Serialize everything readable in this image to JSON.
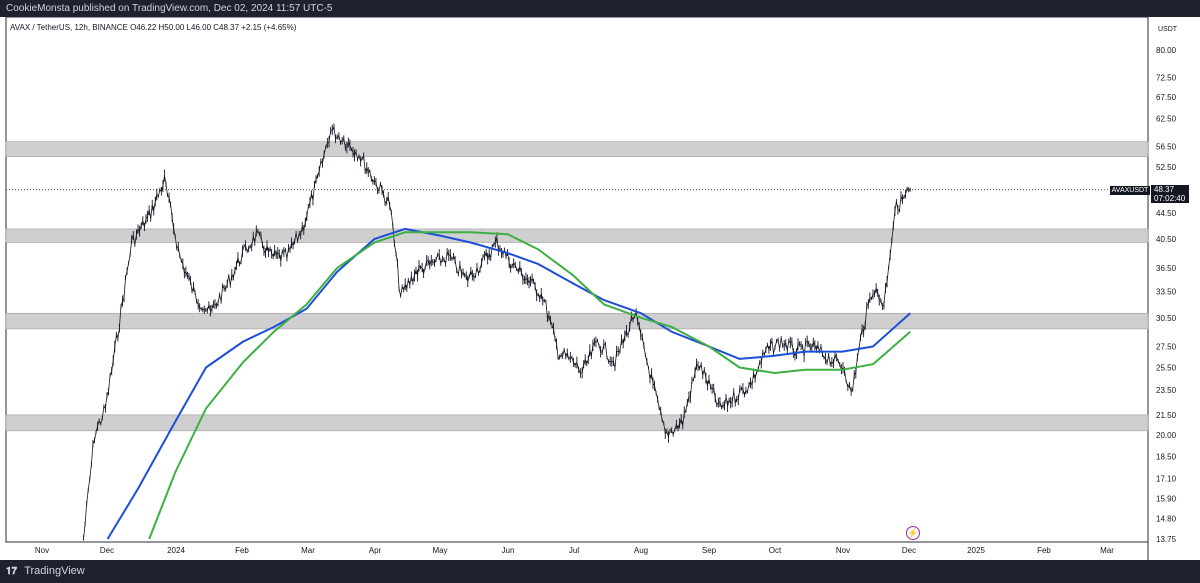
{
  "header": {
    "publisher_text": "CookieMonsta published on TradingView.com, Dec 02, 2024 11:57 UTC-5"
  },
  "footer": {
    "brand": "TradingView",
    "logo": "TV-logo-icon"
  },
  "chart_info": {
    "symbol_line": "AVAX / TetherUS, 12h, BINANCE",
    "ohlc": "O46.22 H50.00 L46.00 C48.37 +2.15 (+4.65%)",
    "unit": "USDT",
    "last_price_label": "48.37",
    "symbol_tag": "AVAXUSDT",
    "countdown": "07:02:40",
    "event_icon": "lightning-icon"
  },
  "colors": {
    "ma_fast": "#1e4ed8",
    "ma_slow": "#3cb043",
    "zones": "#cfcfcf",
    "candles": "#131722"
  },
  "chart_data": {
    "type": "line",
    "title": "",
    "xlabel": "",
    "ylabel": "",
    "y_scale": "log",
    "ylim": [
      13.75,
      90
    ],
    "grid": false,
    "x_ticks": [
      "Nov",
      "Dec",
      "2024",
      "Feb",
      "Mar",
      "Apr",
      "May",
      "Jun",
      "Jul",
      "Aug",
      "Sep",
      "Oct",
      "Nov",
      "Dec",
      "2025",
      "Feb",
      "Mar"
    ],
    "y_ticks": [
      80.0,
      72.5,
      67.5,
      62.5,
      56.5,
      52.5,
      48.5,
      44.5,
      40.5,
      36.5,
      33.5,
      30.5,
      27.5,
      25.5,
      23.5,
      21.5,
      20.0,
      18.5,
      17.1,
      15.9,
      14.8,
      13.75
    ],
    "y_tick_labels": [
      "80.00",
      "72.50",
      "67.50",
      "62.50",
      "56.50",
      "52.50",
      "48.50",
      "44.50",
      "40.50",
      "36.50",
      "33.50",
      "30.50",
      "27.50",
      "25.50",
      "23.50",
      "21.50",
      "20.00",
      "18.50",
      "17.10",
      "15.90",
      "14.80",
      "13.75"
    ],
    "price_path": {
      "x": [
        "2023-11-20",
        "2023-11-25",
        "2023-11-30",
        "2023-12-05",
        "2023-12-12",
        "2023-12-20",
        "2023-12-27",
        "2024-01-03",
        "2024-01-10",
        "2024-01-17",
        "2024-01-24",
        "2024-01-31",
        "2024-02-07",
        "2024-02-14",
        "2024-02-21",
        "2024-02-28",
        "2024-03-06",
        "2024-03-12",
        "2024-03-18",
        "2024-03-25",
        "2024-04-01",
        "2024-04-08",
        "2024-04-13",
        "2024-04-20",
        "2024-04-27",
        "2024-05-05",
        "2024-05-13",
        "2024-05-20",
        "2024-05-27",
        "2024-06-03",
        "2024-06-10",
        "2024-06-17",
        "2024-06-24",
        "2024-07-01",
        "2024-07-05",
        "2024-07-12",
        "2024-07-20",
        "2024-07-29",
        "2024-08-05",
        "2024-08-12",
        "2024-08-20",
        "2024-08-27",
        "2024-09-06",
        "2024-09-13",
        "2024-09-20",
        "2024-09-27",
        "2024-10-04",
        "2024-10-11",
        "2024-10-18",
        "2024-10-25",
        "2024-11-02",
        "2024-11-05",
        "2024-11-10",
        "2024-11-15",
        "2024-11-20",
        "2024-11-25",
        "2024-12-02"
      ],
      "y": [
        13.8,
        20.0,
        22.0,
        28.0,
        40.0,
        44.0,
        50.0,
        38.0,
        33.0,
        31.0,
        34.0,
        38.0,
        41.0,
        38.0,
        38.0,
        42.0,
        50.0,
        60.0,
        58.0,
        55.0,
        50.0,
        46.0,
        33.0,
        36.0,
        37.0,
        38.0,
        35.0,
        37.0,
        40.0,
        37.0,
        35.0,
        33.0,
        27.0,
        26.0,
        25.0,
        28.0,
        26.0,
        31.0,
        25.0,
        20.0,
        21.0,
        26.0,
        22.0,
        23.0,
        24.0,
        27.0,
        28.0,
        27.0,
        27.5,
        26.5,
        25.5,
        23.0,
        29.0,
        34.0,
        32.0,
        45.0,
        48.37
      ]
    },
    "series": [
      {
        "x": [
          "2023-12-01",
          "2023-12-15",
          "2024-01-01",
          "2024-01-15",
          "2024-02-01",
          "2024-02-15",
          "2024-03-01",
          "2024-03-15",
          "2024-04-01",
          "2024-04-15",
          "2024-05-01",
          "2024-05-15",
          "2024-06-01",
          "2024-06-15",
          "2024-07-01",
          "2024-07-15",
          "2024-08-01",
          "2024-08-15",
          "2024-09-01",
          "2024-09-15",
          "2024-10-01",
          "2024-10-15",
          "2024-11-01",
          "2024-11-15",
          "2024-12-02"
        ],
        "values": [
          13.75,
          16.5,
          21.0,
          25.5,
          28.0,
          29.5,
          31.5,
          36.0,
          40.5,
          42.0,
          41.0,
          40.0,
          38.5,
          37.0,
          34.5,
          32.5,
          31.0,
          29.0,
          27.5,
          26.3,
          26.6,
          27.0,
          27.0,
          27.5,
          31.0
        ]
      },
      {
        "x": [
          "2023-12-20",
          "2024-01-01",
          "2024-01-15",
          "2024-02-01",
          "2024-02-15",
          "2024-03-01",
          "2024-03-15",
          "2024-04-01",
          "2024-04-15",
          "2024-05-01",
          "2024-05-15",
          "2024-06-01",
          "2024-06-15",
          "2024-07-01",
          "2024-07-15",
          "2024-08-01",
          "2024-08-15",
          "2024-09-01",
          "2024-09-15",
          "2024-10-01",
          "2024-10-15",
          "2024-11-01",
          "2024-11-15",
          "2024-12-02"
        ],
        "values": [
          13.75,
          17.5,
          22.0,
          26.0,
          29.0,
          32.0,
          36.5,
          40.0,
          41.5,
          41.5,
          41.5,
          41.2,
          39.0,
          35.5,
          32.0,
          30.5,
          29.5,
          27.5,
          25.5,
          25.0,
          25.3,
          25.3,
          25.8,
          29.0
        ]
      }
    ],
    "zones": [
      [
        54.5,
        57.5
      ],
      [
        40.0,
        42.0
      ],
      [
        29.3,
        31.0
      ],
      [
        20.3,
        21.5
      ]
    ],
    "last_price": 48.37
  }
}
